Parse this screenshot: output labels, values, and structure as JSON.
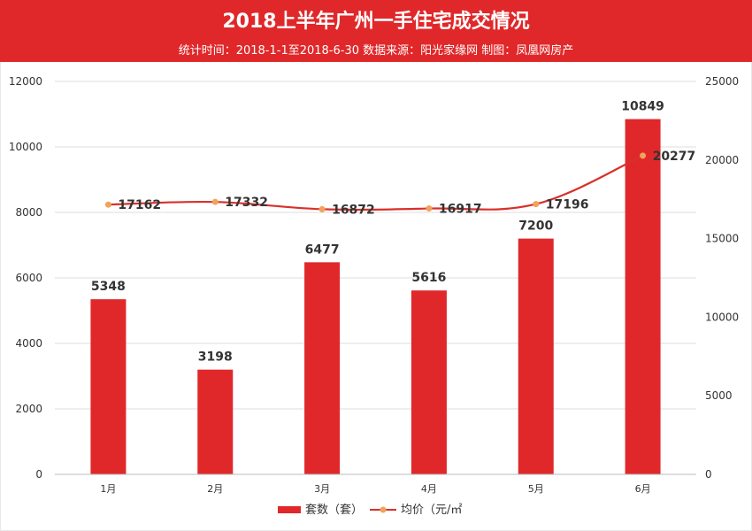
{
  "header": {
    "title": "2018上半年广州一手住宅成交情况",
    "subtitle": "统计时间：2018-1-1至2018-6-30  数据来源：阳光家缘网   制图：凤凰网房产"
  },
  "colors": {
    "banner": "#e0282a",
    "bar": "#e0282a",
    "line": "#d9302b",
    "marker": "#f0a35a",
    "grid": "#dddddd"
  },
  "chart_data": {
    "type": "bar",
    "categories": [
      "1月",
      "2月",
      "3月",
      "4月",
      "5月",
      "6月"
    ],
    "series": [
      {
        "name": "套数（套）",
        "type": "bar",
        "axis": "left",
        "values": [
          5348,
          3198,
          6477,
          5616,
          7200,
          10849
        ]
      },
      {
        "name": "均价（元/㎡",
        "type": "line",
        "axis": "right",
        "values": [
          17162,
          17332,
          16872,
          16917,
          17196,
          20277
        ]
      }
    ],
    "y_left": {
      "ylim": [
        0,
        12000
      ],
      "ticks": [
        0,
        2000,
        4000,
        6000,
        8000,
        10000,
        12000
      ]
    },
    "y_right": {
      "ylim": [
        0,
        25000
      ],
      "ticks": [
        0,
        5000,
        10000,
        15000,
        20000,
        25000
      ]
    },
    "grid": true,
    "legend": "bottom"
  }
}
